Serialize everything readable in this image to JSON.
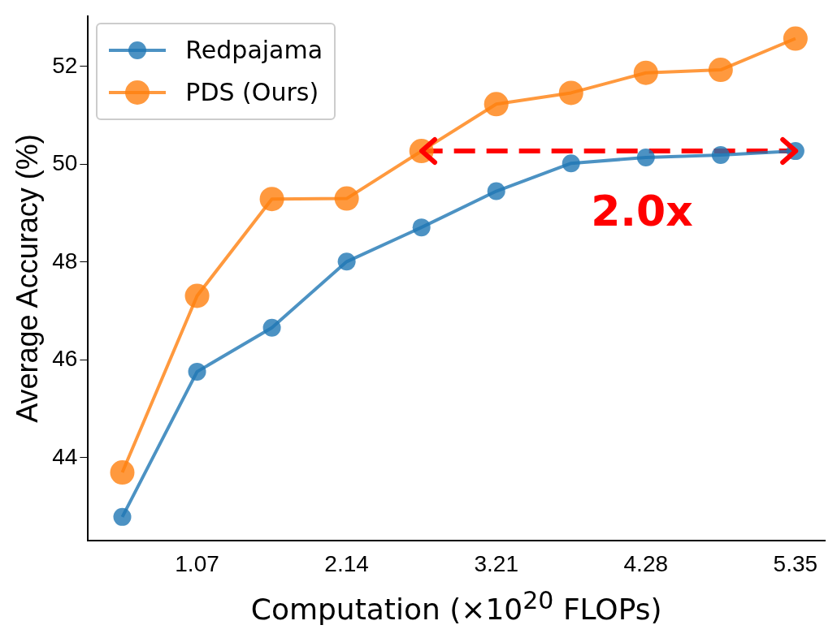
{
  "chart_data": {
    "type": "line",
    "xlabel": "Computation (×10$^{20}$ FLOPs)",
    "ylabel": "Average Accuracy (%)",
    "x": [
      0.535,
      1.07,
      1.605,
      2.14,
      2.675,
      3.21,
      3.745,
      4.28,
      4.815,
      5.35
    ],
    "series": [
      {
        "name": "Redpajama",
        "color": "#1f77b4",
        "values": [
          42.79,
          45.76,
          46.66,
          48.01,
          48.71,
          49.45,
          50.02,
          50.14,
          50.19,
          50.27
        ]
      },
      {
        "name": "PDS (Ours)",
        "color": "#ff7f0e",
        "values": [
          43.7,
          47.31,
          49.29,
          49.3,
          50.27,
          51.23,
          51.46,
          51.87,
          51.93,
          52.57
        ]
      },
      {
        "type": "line",
        "color": "#ff0000",
        "x": [
          2.675,
          5.35
        ],
        "values": [
          50.27,
          50.27
        ],
        "line_style": "dashed",
        "marker": "none"
      }
    ],
    "xlim": [
      0.29,
      5.56
    ],
    "xticks": [
      1.07,
      2.14,
      3.21,
      4.28,
      5.35
    ],
    "ylim": [
      42.3,
      53.03
    ],
    "yticks": [
      44,
      46,
      48,
      50,
      52
    ],
    "annotations": [
      "2.0x"
    ],
    "grid": false,
    "legend": "top left",
    "marker": "circle",
    "line_style": "solid"
  }
}
